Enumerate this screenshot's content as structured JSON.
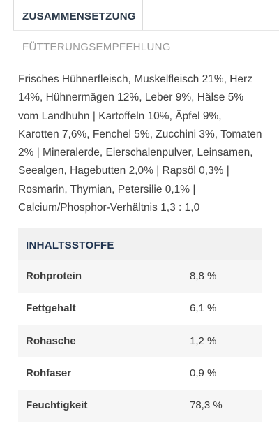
{
  "tabs": {
    "composition_label": "ZUSAMMENSETZUNG",
    "feeding_label": "FÜTTERUNGSEMPFEHLUNG"
  },
  "composition_text": "Frisches Hühnerfleisch, Muskelfleisch 21%, Herz 14%, Hühnermägen 12%, Leber 9%, Hälse 5% vom Landhuhn | Kartoffeln 10%, Äpfel 9%, Karotten 7,6%, Fenchel 5%, Zucchini 3%, Tomaten 2% | Mineralerde, Eierschalenpulver, Leinsamen, Seealgen, Hagebutten 2,0% | Rapsöl 0,3% | Rosmarin, Thymian, Petersilie 0,1% | Calcium/Phosphor-Verhältnis 1,3 : 1,0",
  "nutrients": {
    "header": "INHALTSSTOFFE",
    "rows": [
      {
        "name": "Rohprotein",
        "value": "8,8 %"
      },
      {
        "name": "Fettgehalt",
        "value": "6,1 %"
      },
      {
        "name": "Rohasche",
        "value": "1,2 %"
      },
      {
        "name": "Rohfaser",
        "value": "0,9 %"
      },
      {
        "name": "Feuchtigkeit",
        "value": "78,3 %"
      }
    ]
  }
}
